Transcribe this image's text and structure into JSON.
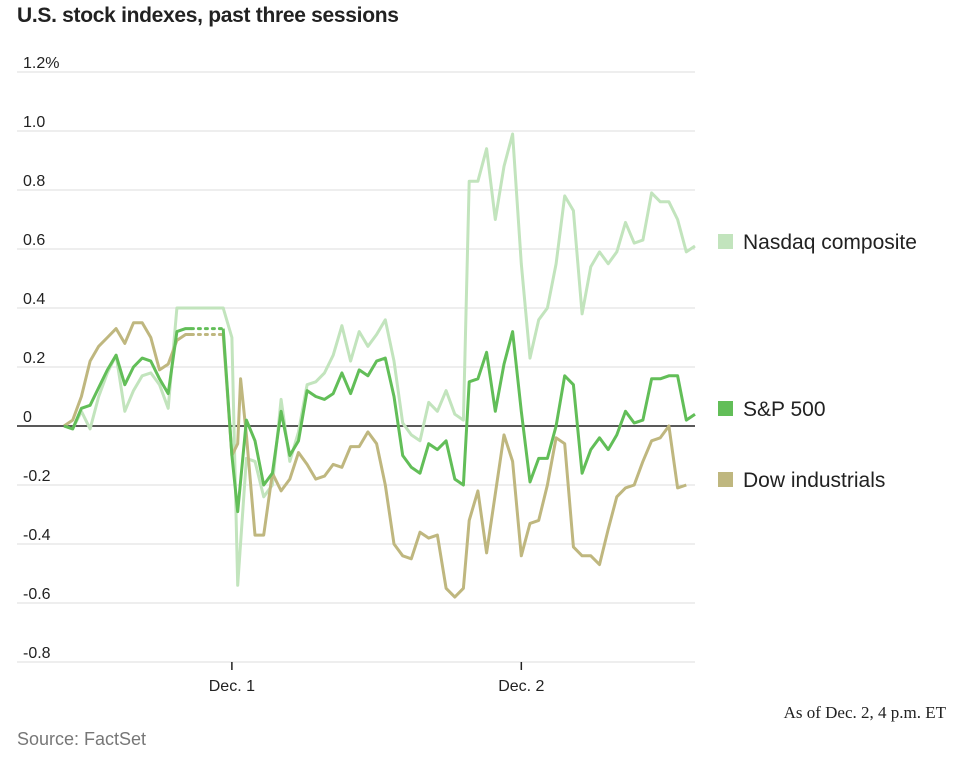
{
  "chart_data": {
    "type": "line",
    "title": "U.S. stock indexes, past three sessions",
    "xlabel": "",
    "ylabel": "",
    "ylim": [
      -0.8,
      1.2
    ],
    "yticks": [
      1.2,
      1.0,
      0.8,
      0.6,
      0.4,
      0.2,
      0,
      -0.2,
      -0.4,
      -0.6,
      -0.8
    ],
    "ytick_labels": [
      "1.2%",
      "1.0",
      "0.8",
      "0.6",
      "0.4",
      "0.2",
      "0",
      "-0.2",
      "-0.4",
      "-0.6",
      "-0.8"
    ],
    "x_range": [
      0,
      3
    ],
    "x_ticks": [
      {
        "label": "Dec. 1",
        "x": 0.78
      },
      {
        "label": "Dec. 2",
        "x": 1.78
      }
    ],
    "series": [
      {
        "name": "Nasdaq composite",
        "color": "#c2e4bd",
        "points": [
          [
            0.2,
            0
          ],
          [
            0.23,
            -0.01
          ],
          [
            0.26,
            0.05
          ],
          [
            0.29,
            -0.01
          ],
          [
            0.32,
            0.1
          ],
          [
            0.35,
            0.18
          ],
          [
            0.38,
            0.24
          ],
          [
            0.41,
            0.05
          ],
          [
            0.44,
            0.12
          ],
          [
            0.47,
            0.17
          ],
          [
            0.5,
            0.18
          ],
          [
            0.53,
            0.14
          ],
          [
            0.56,
            0.06
          ],
          [
            0.59,
            0.4
          ],
          [
            0.62,
            0.4
          ],
          [
            0.65,
            0.4
          ],
          [
            0.68,
            0.4
          ],
          [
            0.7,
            0.4
          ],
          [
            0.75,
            0.4
          ],
          [
            0.78,
            0.3
          ],
          [
            0.8,
            -0.54
          ],
          [
            0.83,
            -0.11
          ],
          [
            0.86,
            -0.12
          ],
          [
            0.89,
            -0.24
          ],
          [
            0.92,
            -0.2
          ],
          [
            0.95,
            0.09
          ],
          [
            0.98,
            -0.12
          ],
          [
            1.01,
            -0.02
          ],
          [
            1.04,
            0.14
          ],
          [
            1.07,
            0.15
          ],
          [
            1.1,
            0.18
          ],
          [
            1.13,
            0.24
          ],
          [
            1.16,
            0.34
          ],
          [
            1.19,
            0.22
          ],
          [
            1.22,
            0.32
          ],
          [
            1.25,
            0.27
          ],
          [
            1.28,
            0.31
          ],
          [
            1.31,
            0.36
          ],
          [
            1.34,
            0.22
          ],
          [
            1.37,
            0.01
          ],
          [
            1.4,
            -0.03
          ],
          [
            1.43,
            -0.05
          ],
          [
            1.46,
            0.08
          ],
          [
            1.49,
            0.05
          ],
          [
            1.52,
            0.12
          ],
          [
            1.55,
            0.04
          ],
          [
            1.58,
            0.02
          ],
          [
            1.6,
            0.83
          ],
          [
            1.63,
            0.83
          ],
          [
            1.66,
            0.94
          ],
          [
            1.69,
            0.7
          ],
          [
            1.72,
            0.88
          ],
          [
            1.75,
            0.99
          ],
          [
            1.78,
            0.55
          ],
          [
            1.81,
            0.23
          ],
          [
            1.84,
            0.36
          ],
          [
            1.87,
            0.4
          ],
          [
            1.9,
            0.55
          ],
          [
            1.93,
            0.78
          ],
          [
            1.96,
            0.73
          ],
          [
            1.99,
            0.38
          ],
          [
            2.02,
            0.54
          ],
          [
            2.05,
            0.59
          ],
          [
            2.08,
            0.55
          ],
          [
            2.11,
            0.59
          ],
          [
            2.14,
            0.69
          ],
          [
            2.17,
            0.62
          ],
          [
            2.2,
            0.63
          ],
          [
            2.23,
            0.79
          ],
          [
            2.26,
            0.76
          ],
          [
            2.29,
            0.76
          ],
          [
            2.32,
            0.7
          ],
          [
            2.35,
            0.59
          ],
          [
            2.38,
            0.61
          ]
        ],
        "gap": {
          "from": [
            0.59,
            0.4
          ],
          "to": [
            0.75,
            0.4
          ]
        }
      },
      {
        "name": "S&P 500",
        "color": "#62be58",
        "points": [
          [
            0.2,
            0
          ],
          [
            0.23,
            -0.01
          ],
          [
            0.26,
            0.06
          ],
          [
            0.29,
            0.07
          ],
          [
            0.32,
            0.13
          ],
          [
            0.35,
            0.19
          ],
          [
            0.38,
            0.24
          ],
          [
            0.41,
            0.14
          ],
          [
            0.44,
            0.2
          ],
          [
            0.47,
            0.23
          ],
          [
            0.5,
            0.22
          ],
          [
            0.53,
            0.16
          ],
          [
            0.56,
            0.11
          ],
          [
            0.59,
            0.32
          ],
          [
            0.62,
            0.33
          ],
          [
            0.64,
            0.33
          ],
          [
            0.68,
            0.33
          ],
          [
            0.72,
            0.33
          ],
          [
            0.75,
            0.33
          ],
          [
            0.78,
            -0.1
          ],
          [
            0.8,
            -0.29
          ],
          [
            0.83,
            0.02
          ],
          [
            0.86,
            -0.05
          ],
          [
            0.89,
            -0.2
          ],
          [
            0.92,
            -0.16
          ],
          [
            0.95,
            0.05
          ],
          [
            0.98,
            -0.1
          ],
          [
            1.01,
            -0.05
          ],
          [
            1.04,
            0.12
          ],
          [
            1.07,
            0.1
          ],
          [
            1.1,
            0.09
          ],
          [
            1.13,
            0.11
          ],
          [
            1.16,
            0.18
          ],
          [
            1.19,
            0.11
          ],
          [
            1.22,
            0.19
          ],
          [
            1.25,
            0.17
          ],
          [
            1.28,
            0.22
          ],
          [
            1.31,
            0.23
          ],
          [
            1.34,
            0.1
          ],
          [
            1.37,
            -0.1
          ],
          [
            1.4,
            -0.14
          ],
          [
            1.43,
            -0.16
          ],
          [
            1.46,
            -0.06
          ],
          [
            1.49,
            -0.08
          ],
          [
            1.52,
            -0.05
          ],
          [
            1.55,
            -0.18
          ],
          [
            1.58,
            -0.2
          ],
          [
            1.6,
            0.15
          ],
          [
            1.63,
            0.16
          ],
          [
            1.66,
            0.25
          ],
          [
            1.69,
            0.05
          ],
          [
            1.72,
            0.21
          ],
          [
            1.75,
            0.32
          ],
          [
            1.78,
            0.05
          ],
          [
            1.81,
            -0.19
          ],
          [
            1.84,
            -0.11
          ],
          [
            1.87,
            -0.11
          ],
          [
            1.9,
            0
          ],
          [
            1.93,
            0.17
          ],
          [
            1.96,
            0.14
          ],
          [
            1.99,
            -0.16
          ],
          [
            2.02,
            -0.08
          ],
          [
            2.05,
            -0.04
          ],
          [
            2.08,
            -0.08
          ],
          [
            2.11,
            -0.03
          ],
          [
            2.14,
            0.05
          ],
          [
            2.17,
            0.01
          ],
          [
            2.2,
            0.02
          ],
          [
            2.23,
            0.16
          ],
          [
            2.26,
            0.16
          ],
          [
            2.29,
            0.17
          ],
          [
            2.32,
            0.17
          ],
          [
            2.35,
            0.02
          ],
          [
            2.38,
            0.04
          ]
        ],
        "gap": {
          "from": [
            0.64,
            0.33
          ],
          "to": [
            0.75,
            0.33
          ]
        }
      },
      {
        "name": "Dow industrials",
        "color": "#bfb77f",
        "points": [
          [
            0.2,
            0
          ],
          [
            0.23,
            0.02
          ],
          [
            0.26,
            0.1
          ],
          [
            0.29,
            0.22
          ],
          [
            0.32,
            0.27
          ],
          [
            0.35,
            0.3
          ],
          [
            0.38,
            0.33
          ],
          [
            0.41,
            0.28
          ],
          [
            0.44,
            0.35
          ],
          [
            0.47,
            0.35
          ],
          [
            0.5,
            0.3
          ],
          [
            0.53,
            0.19
          ],
          [
            0.56,
            0.21
          ],
          [
            0.59,
            0.29
          ],
          [
            0.62,
            0.31
          ],
          [
            0.64,
            0.31
          ],
          [
            0.68,
            0.31
          ],
          [
            0.72,
            0.31
          ],
          [
            0.75,
            0.31
          ],
          [
            0.78,
            -0.1
          ],
          [
            0.8,
            -0.06
          ],
          [
            0.81,
            0.16
          ],
          [
            0.83,
            -0.03
          ],
          [
            0.86,
            -0.37
          ],
          [
            0.89,
            -0.37
          ],
          [
            0.92,
            -0.16
          ],
          [
            0.95,
            -0.22
          ],
          [
            0.98,
            -0.18
          ],
          [
            1.01,
            -0.09
          ],
          [
            1.04,
            -0.13
          ],
          [
            1.07,
            -0.18
          ],
          [
            1.1,
            -0.17
          ],
          [
            1.13,
            -0.13
          ],
          [
            1.16,
            -0.14
          ],
          [
            1.19,
            -0.07
          ],
          [
            1.22,
            -0.07
          ],
          [
            1.25,
            -0.02
          ],
          [
            1.28,
            -0.06
          ],
          [
            1.31,
            -0.2
          ],
          [
            1.34,
            -0.4
          ],
          [
            1.37,
            -0.44
          ],
          [
            1.4,
            -0.45
          ],
          [
            1.43,
            -0.36
          ],
          [
            1.46,
            -0.38
          ],
          [
            1.49,
            -0.37
          ],
          [
            1.52,
            -0.55
          ],
          [
            1.55,
            -0.58
          ],
          [
            1.58,
            -0.55
          ],
          [
            1.6,
            -0.32
          ],
          [
            1.63,
            -0.22
          ],
          [
            1.66,
            -0.43
          ],
          [
            1.69,
            -0.23
          ],
          [
            1.72,
            -0.03
          ],
          [
            1.75,
            -0.12
          ],
          [
            1.78,
            -0.44
          ],
          [
            1.81,
            -0.33
          ],
          [
            1.84,
            -0.32
          ],
          [
            1.87,
            -0.2
          ],
          [
            1.9,
            -0.04
          ],
          [
            1.93,
            -0.06
          ],
          [
            1.96,
            -0.41
          ],
          [
            1.99,
            -0.44
          ],
          [
            2.02,
            -0.44
          ],
          [
            2.05,
            -0.47
          ],
          [
            2.08,
            -0.35
          ],
          [
            2.11,
            -0.24
          ],
          [
            2.14,
            -0.21
          ],
          [
            2.17,
            -0.2
          ],
          [
            2.2,
            -0.12
          ],
          [
            2.23,
            -0.05
          ],
          [
            2.26,
            -0.04
          ],
          [
            2.29,
            0
          ],
          [
            2.32,
            -0.21
          ],
          [
            2.35,
            -0.2
          ]
        ],
        "gap": {
          "from": [
            0.64,
            0.31
          ],
          "to": [
            0.75,
            0.31
          ]
        }
      }
    ],
    "legend": [
      {
        "label": "Nasdaq composite",
        "color": "#c2e4bd",
        "value": 0.61
      },
      {
        "label": "S&P 500",
        "color": "#62be58",
        "value": 0.04
      },
      {
        "label": "Dow industrials",
        "color": "#bfb77f",
        "value": -0.2
      }
    ]
  },
  "note": "As of Dec. 2, 4 p.m. ET",
  "source": "Source: FactSet"
}
